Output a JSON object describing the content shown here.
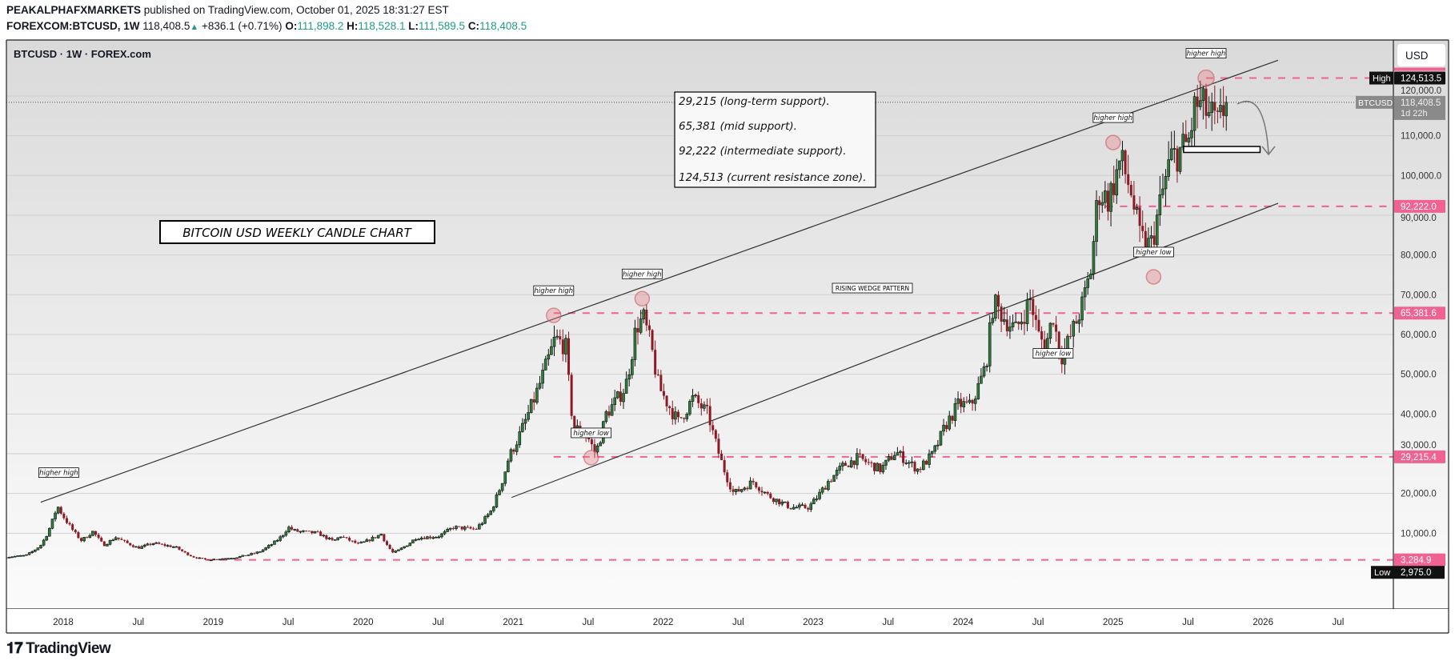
{
  "header": {
    "publisher": "PEAKALPHAFXMARKETS",
    "published_text": "published on TradingView.com, October 01, 2025 18:31:27 EST",
    "symbol": "FOREXCOM:BTCUSD, 1W",
    "last": "118,408.5",
    "change": "+836.1 (+0.71%)",
    "o_label": "O:",
    "o": "111,898.2",
    "h_label": "H:",
    "h": "118,528.1",
    "l_label": "L:",
    "l": "111,589.5",
    "c_label": "C:",
    "c": "118,408.5"
  },
  "chart_title": "BTCUSD · 1W · FOREX.com",
  "currency_button": "USD",
  "price_badges": {
    "high_label": "High",
    "high": "124,513.5",
    "current_symbol": "BTCUSD",
    "current": "118,408.5",
    "countdown": "1d 22h",
    "low_label": "Low",
    "low": "2,975.0",
    "level_92222": "92,222.0",
    "level_65381": "65,381.6",
    "level_29215": "29,215.4",
    "level_3284": "3,284.9"
  },
  "notes_box": [
    "29,215 (long-term support).",
    "65,381 (mid support).",
    "92,222 (intermediate support).",
    "124,513 (current resistance zone)."
  ],
  "title_box": "BITCOIN USD WEEKLY CANDLE CHART",
  "pattern_label": "RISING WEDGE PATTERN",
  "swing_labels": [
    {
      "text": "higher high",
      "t": 2017.97,
      "price": 19000
    },
    {
      "text": "higher high",
      "t": 2021.27,
      "price": 64800
    },
    {
      "text": "higher high",
      "t": 2021.86,
      "price": 69000
    },
    {
      "text": "higher low",
      "t": 2021.52,
      "price": 29000
    },
    {
      "text": "higher high",
      "t": 2025.0,
      "price": 108300
    },
    {
      "text": "higher low",
      "t": 2025.27,
      "price": 74500
    },
    {
      "text": "higher low",
      "t": 2024.6,
      "price": 49000
    },
    {
      "text": "higher high",
      "t": 2025.62,
      "price": 124500
    }
  ],
  "logo_text": "TradingView",
  "colors": {
    "up": "#2e7d3a",
    "down": "#8b1a24",
    "level": "#f06292",
    "bg_top": "#dadada",
    "bg_bottom": "#fbfbfb"
  },
  "chart_data": {
    "type": "candlestick",
    "interval": "1W",
    "symbol": "BTCUSD",
    "x_unit": "decimal year",
    "ylim": [
      0,
      130000
    ],
    "xlim": [
      2017.6,
      2026.85
    ],
    "price_ticks": [
      {
        "v": 10000,
        "label": "10,000.0"
      },
      {
        "v": 20000,
        "label": "20,000.0"
      },
      {
        "v": 30000,
        "label": "30,000.0"
      },
      {
        "v": 40000,
        "label": "40,000.0"
      },
      {
        "v": 50000,
        "label": "50,000.0"
      },
      {
        "v": 60000,
        "label": "60,000.0"
      },
      {
        "v": 70000,
        "label": "70,000.0"
      },
      {
        "v": 80000,
        "label": "80,000.0"
      },
      {
        "v": 90000,
        "label": "90,000.0"
      },
      {
        "v": 100000,
        "label": "100,000.0"
      },
      {
        "v": 110000,
        "label": "110,000.0"
      },
      {
        "v": 120000,
        "label": "120,000.0"
      }
    ],
    "time_ticks": [
      {
        "t": 2018.0,
        "label": "2018"
      },
      {
        "t": 2018.5,
        "label": "Jul"
      },
      {
        "t": 2019.0,
        "label": "2019"
      },
      {
        "t": 2019.5,
        "label": "Jul"
      },
      {
        "t": 2020.0,
        "label": "2020"
      },
      {
        "t": 2020.5,
        "label": "Jul"
      },
      {
        "t": 2021.0,
        "label": "2021"
      },
      {
        "t": 2021.5,
        "label": "Jul"
      },
      {
        "t": 2022.0,
        "label": "2022"
      },
      {
        "t": 2022.5,
        "label": "Jul"
      },
      {
        "t": 2023.0,
        "label": "2023"
      },
      {
        "t": 2023.5,
        "label": "Jul"
      },
      {
        "t": 2024.0,
        "label": "2024"
      },
      {
        "t": 2024.5,
        "label": "Jul"
      },
      {
        "t": 2025.0,
        "label": "2025"
      },
      {
        "t": 2025.5,
        "label": "Jul"
      },
      {
        "t": 2026.0,
        "label": "2026"
      },
      {
        "t": 2026.5,
        "label": "Jul"
      }
    ],
    "levels": [
      {
        "v": 124513.5,
        "from": 2025.62,
        "key": "high"
      },
      {
        "v": 92222.0,
        "from": 2024.95,
        "key": "level_92222"
      },
      {
        "v": 65381.6,
        "from": 2021.27,
        "key": "level_65381"
      },
      {
        "v": 29215.4,
        "from": 2021.27,
        "key": "level_29215"
      },
      {
        "v": 3284.9,
        "from": 2018.95,
        "key": "level_3284"
      }
    ],
    "trendlines": [
      {
        "name": "upper-wedge-line",
        "from": [
          2017.85,
          17800
        ],
        "to": [
          2026.1,
          129000
        ]
      },
      {
        "name": "lower-wedge-line",
        "from": [
          2020.99,
          19000
        ],
        "to": [
          2026.1,
          93000
        ]
      }
    ],
    "support_zone": {
      "from": 2025.47,
      "to": 2025.98,
      "low": 105800,
      "high": 107300
    },
    "close_path": [
      [
        2017.62,
        4000
      ],
      [
        2017.75,
        4400
      ],
      [
        2017.85,
        7000
      ],
      [
        2017.96,
        17000
      ],
      [
        2018.05,
        11500
      ],
      [
        2018.12,
        8200
      ],
      [
        2018.2,
        10500
      ],
      [
        2018.27,
        7000
      ],
      [
        2018.35,
        9000
      ],
      [
        2018.5,
        6300
      ],
      [
        2018.6,
        7500
      ],
      [
        2018.75,
        6500
      ],
      [
        2018.87,
        4000
      ],
      [
        2018.96,
        3300
      ],
      [
        2019.15,
        3900
      ],
      [
        2019.3,
        5200
      ],
      [
        2019.45,
        9000
      ],
      [
        2019.5,
        11500
      ],
      [
        2019.55,
        10500
      ],
      [
        2019.7,
        10000
      ],
      [
        2019.8,
        8000
      ],
      [
        2019.85,
        9300
      ],
      [
        2019.97,
        7200
      ],
      [
        2020.12,
        9800
      ],
      [
        2020.2,
        5000
      ],
      [
        2020.35,
        8800
      ],
      [
        2020.5,
        9200
      ],
      [
        2020.6,
        11500
      ],
      [
        2020.75,
        11000
      ],
      [
        2020.85,
        15500
      ],
      [
        2020.97,
        29000
      ],
      [
        2021.1,
        40000
      ],
      [
        2021.2,
        50000
      ],
      [
        2021.28,
        59000
      ],
      [
        2021.35,
        57000
      ],
      [
        2021.4,
        37000
      ],
      [
        2021.5,
        34000
      ],
      [
        2021.55,
        30000
      ],
      [
        2021.62,
        40000
      ],
      [
        2021.7,
        44000
      ],
      [
        2021.75,
        47000
      ],
      [
        2021.82,
        62000
      ],
      [
        2021.87,
        64000
      ],
      [
        2021.92,
        57000
      ],
      [
        2021.97,
        47000
      ],
      [
        2022.1,
        38000
      ],
      [
        2022.2,
        44000
      ],
      [
        2022.3,
        40000
      ],
      [
        2022.38,
        29000
      ],
      [
        2022.47,
        20000
      ],
      [
        2022.6,
        23000
      ],
      [
        2022.7,
        19500
      ],
      [
        2022.85,
        16500
      ],
      [
        2022.97,
        16500
      ],
      [
        2023.1,
        23000
      ],
      [
        2023.2,
        27000
      ],
      [
        2023.3,
        29000
      ],
      [
        2023.45,
        26000
      ],
      [
        2023.55,
        30500
      ],
      [
        2023.7,
        26000
      ],
      [
        2023.8,
        30000
      ],
      [
        2023.88,
        37000
      ],
      [
        2023.97,
        42500
      ],
      [
        2024.05,
        42000
      ],
      [
        2024.15,
        52000
      ],
      [
        2024.2,
        68000
      ],
      [
        2024.28,
        64000
      ],
      [
        2024.35,
        61000
      ],
      [
        2024.45,
        69000
      ],
      [
        2024.5,
        60000
      ],
      [
        2024.55,
        57000
      ],
      [
        2024.6,
        65000
      ],
      [
        2024.65,
        54000
      ],
      [
        2024.7,
        58000
      ],
      [
        2024.8,
        68000
      ],
      [
        2024.85,
        76000
      ],
      [
        2024.9,
        96000
      ],
      [
        2024.97,
        94000
      ],
      [
        2025.05,
        104000
      ],
      [
        2025.12,
        96000
      ],
      [
        2025.18,
        84000
      ],
      [
        2025.25,
        82000
      ],
      [
        2025.32,
        94000
      ],
      [
        2025.38,
        104000
      ],
      [
        2025.5,
        108000
      ],
      [
        2025.55,
        118000
      ],
      [
        2025.6,
        117000
      ],
      [
        2025.65,
        115000
      ],
      [
        2025.7,
        112000
      ],
      [
        2025.75,
        118408.5
      ]
    ]
  }
}
